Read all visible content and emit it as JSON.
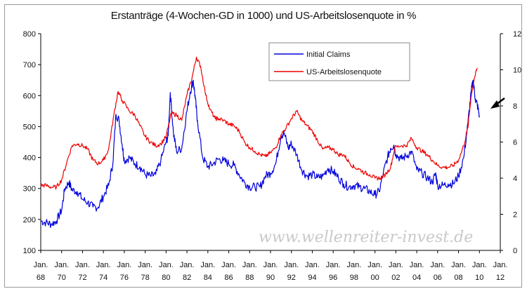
{
  "chart_data": {
    "type": "line",
    "title": "Erstanträge (4-Wochen-GD in 1000) und US-Arbeitslosenquote in %",
    "watermark": "www.wellenreiter-invest.de",
    "x_tick_labels": [
      [
        "Jan.",
        "68"
      ],
      [
        "Jan.",
        "70"
      ],
      [
        "Jan.",
        "72"
      ],
      [
        "Jan.",
        "74"
      ],
      [
        "Jan.",
        "76"
      ],
      [
        "Jan.",
        "78"
      ],
      [
        "Jan.",
        "80"
      ],
      [
        "Jan.",
        "82"
      ],
      [
        "Jan.",
        "84"
      ],
      [
        "Jan.",
        "86"
      ],
      [
        "Jan.",
        "88"
      ],
      [
        "Jan.",
        "90"
      ],
      [
        "Jan.",
        "92"
      ],
      [
        "Jan.",
        "94"
      ],
      [
        "Jan.",
        "96"
      ],
      [
        "Jan.",
        "98"
      ],
      [
        "Jan.",
        "00"
      ],
      [
        "Jan.",
        "02"
      ],
      [
        "Jan.",
        "04"
      ],
      [
        "Jan.",
        "06"
      ],
      [
        "Jan.",
        "08"
      ],
      [
        "Jan.",
        "10"
      ],
      [
        "Jan.",
        "12"
      ]
    ],
    "x_range": [
      1968.0,
      2012.0
    ],
    "y_left_ticks": [
      "100",
      "200",
      "300",
      "400",
      "500",
      "600",
      "700",
      "800"
    ],
    "y_left_range": [
      100,
      800
    ],
    "y_right_ticks": [
      "0",
      "2",
      "4",
      "6",
      "8",
      "10",
      "12"
    ],
    "y_right_range": [
      0,
      12
    ],
    "grid": false,
    "legend_position": "top-center",
    "series": [
      {
        "name": "Initial Claims",
        "axis": "left",
        "color": "#0000dd",
        "points": [
          [
            1968.0,
            195
          ],
          [
            1968.5,
            190
          ],
          [
            1969.0,
            185
          ],
          [
            1969.5,
            195
          ],
          [
            1970.0,
            230
          ],
          [
            1970.3,
            300
          ],
          [
            1970.7,
            320
          ],
          [
            1971.0,
            295
          ],
          [
            1971.5,
            290
          ],
          [
            1972.0,
            265
          ],
          [
            1972.5,
            255
          ],
          [
            1973.0,
            240
          ],
          [
            1973.5,
            240
          ],
          [
            1974.0,
            275
          ],
          [
            1974.5,
            310
          ],
          [
            1974.9,
            380
          ],
          [
            1975.2,
            540
          ],
          [
            1975.5,
            520
          ],
          [
            1975.8,
            440
          ],
          [
            1976.0,
            390
          ],
          [
            1976.5,
            400
          ],
          [
            1977.0,
            380
          ],
          [
            1977.5,
            370
          ],
          [
            1978.0,
            345
          ],
          [
            1978.5,
            340
          ],
          [
            1979.0,
            345
          ],
          [
            1979.5,
            390
          ],
          [
            1980.0,
            450
          ],
          [
            1980.2,
            470
          ],
          [
            1980.4,
            610
          ],
          [
            1980.7,
            480
          ],
          [
            1981.0,
            420
          ],
          [
            1981.5,
            430
          ],
          [
            1981.9,
            530
          ],
          [
            1982.3,
            610
          ],
          [
            1982.6,
            650
          ],
          [
            1982.8,
            590
          ],
          [
            1983.0,
            520
          ],
          [
            1983.5,
            400
          ],
          [
            1984.0,
            370
          ],
          [
            1984.5,
            380
          ],
          [
            1985.0,
            395
          ],
          [
            1985.5,
            390
          ],
          [
            1986.0,
            380
          ],
          [
            1986.5,
            375
          ],
          [
            1987.0,
            345
          ],
          [
            1987.5,
            320
          ],
          [
            1988.0,
            305
          ],
          [
            1988.5,
            305
          ],
          [
            1989.0,
            305
          ],
          [
            1989.5,
            340
          ],
          [
            1990.0,
            350
          ],
          [
            1990.5,
            380
          ],
          [
            1991.0,
            470
          ],
          [
            1991.3,
            480
          ],
          [
            1991.7,
            430
          ],
          [
            1992.0,
            445
          ],
          [
            1992.5,
            410
          ],
          [
            1993.0,
            360
          ],
          [
            1993.5,
            340
          ],
          [
            1994.0,
            345
          ],
          [
            1994.5,
            335
          ],
          [
            1995.0,
            340
          ],
          [
            1995.5,
            365
          ],
          [
            1996.0,
            355
          ],
          [
            1996.5,
            335
          ],
          [
            1997.0,
            315
          ],
          [
            1997.5,
            305
          ],
          [
            1998.0,
            310
          ],
          [
            1998.5,
            305
          ],
          [
            1999.0,
            300
          ],
          [
            1999.5,
            290
          ],
          [
            2000.0,
            280
          ],
          [
            2000.4,
            290
          ],
          [
            2000.8,
            350
          ],
          [
            2001.2,
            400
          ],
          [
            2001.5,
            430
          ],
          [
            2001.8,
            440
          ],
          [
            2002.0,
            410
          ],
          [
            2002.5,
            395
          ],
          [
            2003.0,
            405
          ],
          [
            2003.5,
            420
          ],
          [
            2004.0,
            360
          ],
          [
            2004.5,
            350
          ],
          [
            2005.0,
            335
          ],
          [
            2005.5,
            320
          ],
          [
            2005.8,
            350
          ],
          [
            2006.0,
            310
          ],
          [
            2006.5,
            310
          ],
          [
            2007.0,
            315
          ],
          [
            2007.5,
            315
          ],
          [
            2008.0,
            340
          ],
          [
            2008.5,
            400
          ],
          [
            2008.9,
            510
          ],
          [
            2009.2,
            610
          ],
          [
            2009.4,
            650
          ],
          [
            2009.6,
            590
          ],
          [
            2009.8,
            570
          ],
          [
            2010.0,
            535
          ]
        ]
      },
      {
        "name": "US-Arbeitslosenquote",
        "axis": "right",
        "color": "#ee0000",
        "points": [
          [
            1968.0,
            3.6
          ],
          [
            1968.5,
            3.6
          ],
          [
            1969.0,
            3.5
          ],
          [
            1969.5,
            3.5
          ],
          [
            1970.0,
            3.9
          ],
          [
            1970.5,
            4.9
          ],
          [
            1971.0,
            5.8
          ],
          [
            1971.5,
            5.9
          ],
          [
            1972.0,
            5.8
          ],
          [
            1972.5,
            5.6
          ],
          [
            1973.0,
            5.0
          ],
          [
            1973.5,
            4.8
          ],
          [
            1974.0,
            5.0
          ],
          [
            1974.5,
            5.6
          ],
          [
            1975.0,
            7.5
          ],
          [
            1975.4,
            8.8
          ],
          [
            1975.8,
            8.3
          ],
          [
            1976.5,
            7.7
          ],
          [
            1977.0,
            7.5
          ],
          [
            1977.5,
            6.9
          ],
          [
            1978.0,
            6.3
          ],
          [
            1978.5,
            6.0
          ],
          [
            1979.0,
            5.8
          ],
          [
            1979.5,
            5.9
          ],
          [
            1980.0,
            6.3
          ],
          [
            1980.5,
            7.6
          ],
          [
            1981.0,
            7.5
          ],
          [
            1981.5,
            7.2
          ],
          [
            1982.0,
            8.6
          ],
          [
            1982.5,
            9.6
          ],
          [
            1982.9,
            10.7
          ],
          [
            1983.3,
            10.2
          ],
          [
            1983.8,
            8.6
          ],
          [
            1984.2,
            7.8
          ],
          [
            1984.7,
            7.3
          ],
          [
            1985.0,
            7.3
          ],
          [
            1985.5,
            7.2
          ],
          [
            1986.0,
            7.0
          ],
          [
            1986.5,
            6.9
          ],
          [
            1987.0,
            6.6
          ],
          [
            1987.5,
            6.0
          ],
          [
            1988.0,
            5.7
          ],
          [
            1988.5,
            5.5
          ],
          [
            1989.0,
            5.3
          ],
          [
            1989.5,
            5.2
          ],
          [
            1990.0,
            5.4
          ],
          [
            1990.5,
            5.7
          ],
          [
            1991.0,
            6.4
          ],
          [
            1991.5,
            6.8
          ],
          [
            1992.0,
            7.3
          ],
          [
            1992.5,
            7.7
          ],
          [
            1993.0,
            7.2
          ],
          [
            1993.5,
            6.9
          ],
          [
            1994.0,
            6.6
          ],
          [
            1994.5,
            6.1
          ],
          [
            1995.0,
            5.6
          ],
          [
            1995.5,
            5.7
          ],
          [
            1996.0,
            5.6
          ],
          [
            1996.5,
            5.3
          ],
          [
            1997.0,
            5.3
          ],
          [
            1997.5,
            4.9
          ],
          [
            1998.0,
            4.6
          ],
          [
            1998.5,
            4.5
          ],
          [
            1999.0,
            4.3
          ],
          [
            1999.5,
            4.2
          ],
          [
            2000.0,
            4.0
          ],
          [
            2000.5,
            4.0
          ],
          [
            2001.0,
            4.2
          ],
          [
            2001.5,
            4.6
          ],
          [
            2001.9,
            5.7
          ],
          [
            2002.5,
            5.8
          ],
          [
            2003.0,
            5.8
          ],
          [
            2003.5,
            6.2
          ],
          [
            2004.0,
            5.7
          ],
          [
            2004.5,
            5.5
          ],
          [
            2005.0,
            5.3
          ],
          [
            2005.5,
            5.0
          ],
          [
            2006.0,
            4.7
          ],
          [
            2006.5,
            4.6
          ],
          [
            2007.0,
            4.6
          ],
          [
            2007.5,
            4.7
          ],
          [
            2008.0,
            5.0
          ],
          [
            2008.5,
            5.8
          ],
          [
            2008.9,
            6.8
          ],
          [
            2009.2,
            8.5
          ],
          [
            2009.5,
            9.5
          ],
          [
            2009.8,
            10.1
          ]
        ]
      }
    ]
  }
}
